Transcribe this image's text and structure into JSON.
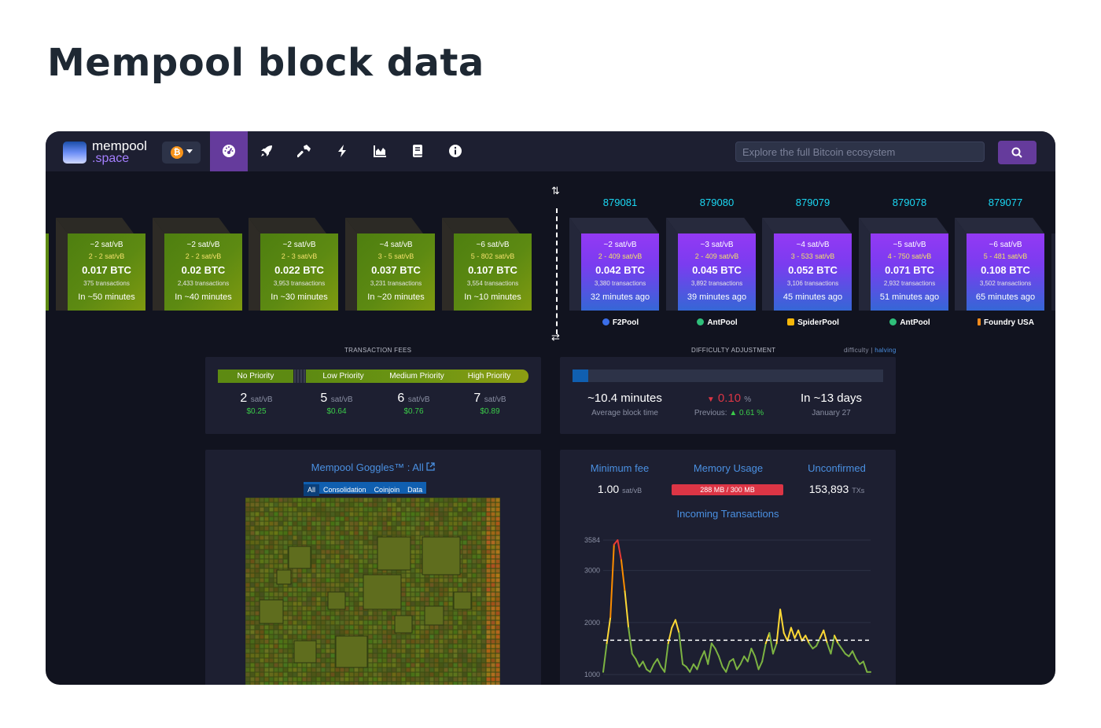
{
  "page": {
    "title": "Mempool block data"
  },
  "nav": {
    "logo_word1": "mempool",
    "logo_word2": ".space",
    "network_symbol": "₿",
    "items": [
      "dashboard-icon",
      "rocket-icon",
      "hammer-icon",
      "lightning-icon",
      "chart-icon",
      "book-icon",
      "info-icon"
    ],
    "active_item": "dashboard-icon",
    "search_placeholder": "Explore the full Bitcoin ecosystem"
  },
  "mempool_blocks": [
    {
      "median_fee": "~2 sat/vB",
      "fee_range": "2 - 2 sat/vB",
      "size": "0.017 BTC",
      "tx_count": "375 transactions",
      "eta": "In ~50 minutes"
    },
    {
      "median_fee": "~2 sat/vB",
      "fee_range": "2 - 2 sat/vB",
      "size": "0.02 BTC",
      "tx_count": "2,433 transactions",
      "eta": "In ~40 minutes"
    },
    {
      "median_fee": "~2 sat/vB",
      "fee_range": "2 - 3 sat/vB",
      "size": "0.022 BTC",
      "tx_count": "3,953 transactions",
      "eta": "In ~30 minutes"
    },
    {
      "median_fee": "~4 sat/vB",
      "fee_range": "3 - 5 sat/vB",
      "size": "0.037 BTC",
      "tx_count": "3,231 transactions",
      "eta": "In ~20 minutes"
    },
    {
      "median_fee": "~6 sat/vB",
      "fee_range": "5 - 802 sat/vB",
      "size": "0.107 BTC",
      "tx_count": "3,554 transactions",
      "eta": "In ~10 minutes"
    }
  ],
  "confirmed_blocks": [
    {
      "height": "879081",
      "median_fee": "~2 sat/vB",
      "fee_range": "2 - 409 sat/vB",
      "size": "0.042 BTC",
      "tx_count": "3,380 transactions",
      "age": "32 minutes ago",
      "pool": "F2Pool",
      "pool_color": "#3b6ee8"
    },
    {
      "height": "879080",
      "median_fee": "~3 sat/vB",
      "fee_range": "2 - 409 sat/vB",
      "size": "0.045 BTC",
      "tx_count": "3,892 transactions",
      "age": "39 minutes ago",
      "pool": "AntPool",
      "pool_color": "#2fbf7a"
    },
    {
      "height": "879079",
      "median_fee": "~4 sat/vB",
      "fee_range": "3 - 533 sat/vB",
      "size": "0.052 BTC",
      "tx_count": "3,106 transactions",
      "age": "45 minutes ago",
      "pool": "SpiderPool",
      "pool_color": "#f5b70a"
    },
    {
      "height": "879078",
      "median_fee": "~5 sat/vB",
      "fee_range": "4 - 750 sat/vB",
      "size": "0.071 BTC",
      "tx_count": "2,932 transactions",
      "age": "51 minutes ago",
      "pool": "AntPool",
      "pool_color": "#2fbf7a"
    },
    {
      "height": "879077",
      "median_fee": "~6 sat/vB",
      "fee_range": "5 - 481 sat/vB",
      "size": "0.108 BTC",
      "tx_count": "3,502 transactions",
      "age": "65 minutes ago",
      "pool": "Foundry USA",
      "pool_color": "#f08a1c"
    }
  ],
  "transaction_fees": {
    "label": "TRANSACTION FEES",
    "no_priority": "No Priority",
    "low_priority": "Low Priority",
    "medium_priority": "Medium Priority",
    "high_priority": "High Priority",
    "unit": "sat/vB",
    "values": [
      {
        "fee": "2",
        "usd": "$0.25"
      },
      {
        "fee": "5",
        "usd": "$0.64"
      },
      {
        "fee": "6",
        "usd": "$0.76"
      },
      {
        "fee": "7",
        "usd": "$0.89"
      }
    ]
  },
  "difficulty": {
    "label": "DIFFICULTY ADJUSTMENT",
    "link_difficulty": "difficulty",
    "link_sep": "|",
    "link_halving": "halving",
    "progress": 0.05,
    "avg_block_time": "~10.4 minutes",
    "avg_block_time_label": "Average block time",
    "change_value": "0.10",
    "change_unit": "%",
    "previous_label": "Previous:",
    "previous_value": "0.61",
    "previous_unit": "%",
    "eta": "In ~13 days",
    "eta_date": "January 27",
    "down_color": "#dc3545",
    "up_color": "#3bcc49"
  },
  "goggles": {
    "title": "Mempool Goggles™ : All",
    "tabs": [
      "All",
      "Consolidation",
      "Coinjoin",
      "Data"
    ],
    "active_tab": "All"
  },
  "mempool_stats": {
    "min_fee_label": "Minimum fee",
    "min_fee_value": "1.00",
    "min_fee_unit": "sat/vB",
    "memory_label": "Memory Usage",
    "memory_value": "288 MB / 300 MB",
    "memory_fraction": 0.96,
    "unconfirmed_label": "Unconfirmed",
    "unconfirmed_value": "153,893",
    "unconfirmed_unit": "TXs",
    "incoming_label": "Incoming Transactions"
  },
  "chart_data": {
    "type": "line",
    "title": "Incoming Transactions",
    "xlabel": "",
    "ylabel": "",
    "y_ticks": [
      1000,
      2000,
      3000,
      3584
    ],
    "ylim": [
      1000,
      3584
    ],
    "reference_line": 1660,
    "grid": true,
    "series": [
      {
        "values": [
          1050,
          1600,
          2100,
          3500,
          3584,
          3200,
          2600,
          1900,
          1400,
          1300,
          1150,
          1250,
          1100,
          1050,
          1200,
          1300,
          1150,
          1050,
          1600,
          1900,
          2050,
          1800,
          1200,
          1150,
          1050,
          1200,
          1100,
          1300,
          1450,
          1200,
          1600,
          1500,
          1350,
          1150,
          1050,
          1250,
          1300,
          1100,
          1200,
          1350,
          1250,
          1500,
          1350,
          1100,
          1250,
          1600,
          1800,
          1400,
          1600,
          2250,
          1800,
          1650,
          1900,
          1700,
          1850,
          1650,
          1750,
          1600,
          1500,
          1550,
          1700,
          1850,
          1600,
          1400,
          1750,
          1600,
          1500,
          1400,
          1350,
          1450,
          1300,
          1200,
          1250,
          1050,
          1050
        ]
      }
    ]
  }
}
